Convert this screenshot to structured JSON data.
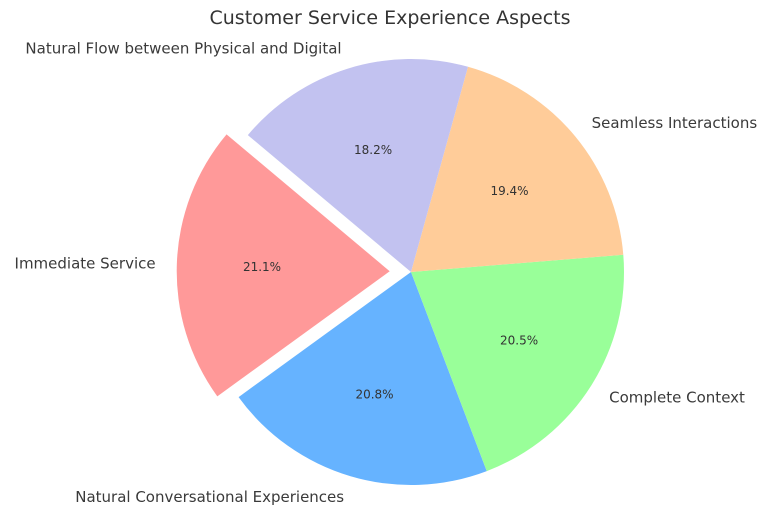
{
  "figure": {
    "background": "#ffffff",
    "label_text_color": "#3a3a3a",
    "pct_text_color": "#333333",
    "title_text_color": "#343434"
  },
  "chart_data": {
    "type": "pie",
    "title": "Customer Service Experience Aspects",
    "start_angle": 140,
    "direction": "counterclockwise",
    "label_distance": 1.1,
    "pct_distance": 0.6,
    "legend": "none",
    "slices": [
      {
        "label": "Immediate Service",
        "value": 21.1,
        "pct_label": "21.1%",
        "color": "#ff9999",
        "explode": 0.1
      },
      {
        "label": "Natural Conversational Experiences",
        "value": 20.8,
        "pct_label": "20.8%",
        "color": "#66b3ff",
        "explode": 0
      },
      {
        "label": "Complete Context",
        "value": 20.5,
        "pct_label": "20.5%",
        "color": "#99ff99",
        "explode": 0
      },
      {
        "label": "Seamless Interactions",
        "value": 19.4,
        "pct_label": "19.4%",
        "color": "#ffcc99",
        "explode": 0
      },
      {
        "label": "Natural Flow between Physical and Digital",
        "value": 18.2,
        "pct_label": "18.2%",
        "color": "#c2c2f0",
        "explode": 0
      }
    ]
  }
}
